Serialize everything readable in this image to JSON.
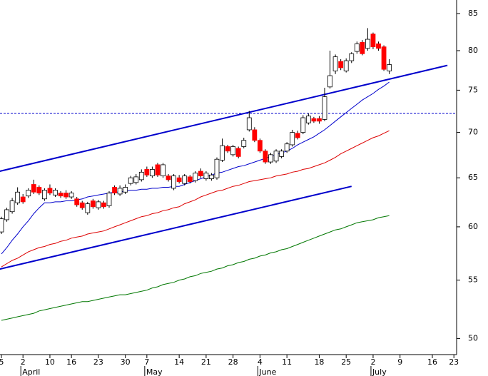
{
  "chart_data": {
    "type": "candlestick",
    "log_scale": true,
    "ylim": [
      48.7,
      86.9
    ],
    "yticks": [
      50,
      55,
      60,
      65,
      70,
      75,
      80,
      85
    ],
    "categories": [
      "5",
      null,
      null,
      null,
      "2",
      null,
      null,
      null,
      null,
      "10",
      null,
      null,
      null,
      "16",
      null,
      null,
      null,
      null,
      "23",
      null,
      null,
      null,
      null,
      "30",
      null,
      null,
      null,
      "7",
      null,
      null,
      null,
      null,
      null,
      "14",
      null,
      null,
      null,
      null,
      "21",
      null,
      null,
      null,
      null,
      "28",
      null,
      null,
      null,
      null,
      "4",
      null,
      null,
      null,
      null,
      "11",
      null,
      null,
      null,
      null,
      null,
      "18",
      null,
      null,
      null,
      null,
      "25",
      null,
      null,
      null,
      null,
      "2",
      null,
      null,
      null,
      null,
      "9",
      null,
      null,
      null,
      null,
      null,
      "16",
      null,
      null,
      null,
      "23"
    ],
    "months": [
      "April",
      "May",
      "June",
      "July"
    ],
    "up_color": "#ffffff",
    "down_color": "#ff0000",
    "ohlc": [
      [
        59.5,
        61.0,
        59.3,
        60.8
      ],
      [
        60.7,
        61.9,
        60.5,
        61.7
      ],
      [
        61.5,
        62.9,
        61.3,
        62.6
      ],
      [
        62.4,
        64.0,
        62.2,
        63.5
      ],
      [
        63.0,
        63.3,
        62.3,
        62.5
      ],
      [
        63.1,
        63.9,
        62.9,
        63.7
      ],
      [
        64.3,
        64.8,
        63.3,
        63.5
      ],
      [
        64.0,
        64.2,
        63.2,
        63.4
      ],
      [
        62.8,
        63.9,
        62.6,
        63.7
      ],
      [
        63.9,
        64.3,
        63.2,
        63.4
      ],
      [
        63.2,
        63.9,
        63.0,
        63.7
      ],
      [
        63.4,
        63.6,
        62.9,
        63.1
      ],
      [
        63.4,
        63.7,
        62.8,
        63.0
      ],
      [
        63.0,
        63.6,
        62.8,
        63.4
      ],
      [
        62.8,
        63.0,
        62.0,
        62.2
      ],
      [
        62.4,
        62.6,
        61.7,
        61.9
      ],
      [
        61.4,
        62.5,
        61.2,
        62.3
      ],
      [
        62.6,
        62.8,
        61.8,
        62.0
      ],
      [
        61.9,
        62.7,
        61.7,
        62.5
      ],
      [
        62.4,
        62.6,
        61.8,
        62.0
      ],
      [
        62.1,
        63.6,
        61.9,
        63.4
      ],
      [
        64.0,
        64.2,
        63.2,
        63.4
      ],
      [
        63.3,
        64.2,
        63.1,
        63.9
      ],
      [
        63.5,
        64.3,
        63.3,
        64.0
      ],
      [
        64.4,
        65.2,
        64.2,
        65.0
      ],
      [
        64.5,
        65.4,
        64.3,
        65.1
      ],
      [
        64.8,
        65.9,
        64.6,
        65.6
      ],
      [
        65.9,
        66.2,
        65.1,
        65.3
      ],
      [
        65.2,
        66.2,
        65.0,
        65.9
      ],
      [
        66.4,
        66.6,
        65.1,
        65.3
      ],
      [
        65.2,
        66.6,
        65.0,
        66.4
      ],
      [
        65.2,
        65.4,
        64.6,
        64.8
      ],
      [
        63.9,
        65.4,
        63.7,
        65.2
      ],
      [
        65.0,
        65.3,
        64.4,
        64.6
      ],
      [
        64.4,
        65.4,
        64.2,
        65.2
      ],
      [
        65.1,
        65.3,
        64.4,
        64.6
      ],
      [
        64.7,
        65.7,
        64.5,
        65.5
      ],
      [
        65.7,
        66.0,
        65.0,
        65.2
      ],
      [
        64.9,
        65.7,
        64.7,
        65.5
      ],
      [
        64.9,
        65.5,
        64.7,
        65.3
      ],
      [
        65.0,
        67.2,
        64.8,
        67.0
      ],
      [
        66.9,
        69.3,
        66.7,
        68.5
      ],
      [
        68.4,
        68.6,
        67.7,
        67.9
      ],
      [
        67.5,
        68.6,
        67.3,
        68.4
      ],
      [
        68.2,
        68.4,
        67.1,
        67.3
      ],
      [
        68.4,
        69.4,
        68.2,
        69.1
      ],
      [
        70.3,
        72.5,
        70.1,
        71.7
      ],
      [
        70.3,
        70.6,
        68.9,
        69.1
      ],
      [
        69.1,
        69.3,
        67.7,
        67.9
      ],
      [
        67.9,
        68.1,
        66.5,
        66.7
      ],
      [
        66.7,
        67.7,
        66.5,
        67.5
      ],
      [
        66.8,
        68.1,
        66.6,
        67.9
      ],
      [
        67.3,
        68.1,
        67.1,
        67.9
      ],
      [
        67.9,
        68.9,
        67.7,
        68.7
      ],
      [
        68.6,
        70.3,
        68.4,
        70.0
      ],
      [
        69.9,
        70.2,
        69.2,
        69.4
      ],
      [
        70.0,
        72.0,
        69.8,
        71.7
      ],
      [
        71.1,
        72.2,
        70.9,
        71.9
      ],
      [
        71.6,
        71.8,
        71.1,
        71.3
      ],
      [
        71.6,
        71.9,
        71.0,
        71.3
      ],
      [
        71.5,
        75.3,
        71.3,
        74.2
      ],
      [
        75.4,
        80.0,
        75.2,
        76.8
      ],
      [
        77.4,
        79.5,
        77.0,
        79.2
      ],
      [
        78.6,
        78.9,
        77.5,
        77.8
      ],
      [
        77.4,
        79.0,
        77.2,
        78.7
      ],
      [
        78.7,
        79.8,
        78.4,
        79.6
      ],
      [
        79.9,
        81.2,
        79.6,
        80.9
      ],
      [
        81.1,
        81.4,
        79.4,
        79.6
      ],
      [
        80.3,
        83.0,
        80.0,
        81.5
      ],
      [
        82.2,
        82.4,
        80.2,
        80.5
      ],
      [
        80.9,
        81.2,
        80.0,
        80.3
      ],
      [
        80.5,
        80.7,
        77.4,
        77.6
      ],
      [
        77.4,
        78.9,
        77.0,
        78.2
      ],
      null,
      null,
      null,
      null,
      null,
      null,
      null,
      null,
      null,
      null,
      null,
      null
    ],
    "series": [
      {
        "color": "#0000cc",
        "values": [
          57.4,
          58.0,
          58.7,
          59.3,
          60.0,
          60.6,
          61.3,
          61.9,
          62.4,
          62.4,
          62.5,
          62.5,
          62.6,
          62.6,
          62.7,
          62.8,
          63.0,
          63.1,
          63.2,
          63.3,
          63.4,
          63.5,
          63.5,
          63.6,
          63.7,
          63.7,
          63.8,
          63.8,
          63.9,
          63.9,
          64.0,
          64.0,
          64.1,
          64.1,
          64.3,
          64.5,
          64.7,
          64.9,
          65.1,
          65.3,
          65.5,
          65.6,
          65.8,
          66.0,
          66.2,
          66.3,
          66.5,
          66.7,
          66.9,
          67.1,
          67.3,
          67.5,
          67.7,
          67.9,
          68.2,
          68.6,
          68.9,
          69.2,
          69.5,
          69.9,
          70.3,
          70.8,
          71.3,
          71.8,
          72.3,
          72.8,
          73.3,
          73.8,
          74.2,
          74.6,
          75.1,
          75.5,
          76.0,
          null,
          null,
          null,
          null,
          null,
          null,
          null,
          null,
          null,
          null,
          null,
          null
        ]
      },
      {
        "color": "#dd0000",
        "values": [
          56.2,
          56.5,
          56.8,
          57.0,
          57.3,
          57.6,
          57.8,
          58.0,
          58.1,
          58.3,
          58.4,
          58.6,
          58.7,
          58.9,
          59.0,
          59.1,
          59.3,
          59.4,
          59.5,
          59.6,
          59.8,
          60.0,
          60.2,
          60.4,
          60.6,
          60.8,
          61.0,
          61.1,
          61.3,
          61.4,
          61.6,
          61.7,
          61.9,
          62.0,
          62.3,
          62.5,
          62.7,
          63.0,
          63.2,
          63.4,
          63.6,
          63.7,
          63.9,
          64.1,
          64.2,
          64.4,
          64.6,
          64.7,
          64.8,
          64.9,
          65.0,
          65.2,
          65.3,
          65.4,
          65.6,
          65.7,
          65.9,
          66.0,
          66.2,
          66.4,
          66.6,
          66.9,
          67.2,
          67.6,
          67.9,
          68.2,
          68.5,
          68.8,
          69.1,
          69.4,
          69.6,
          69.9,
          70.2,
          null,
          null,
          null,
          null,
          null,
          null,
          null,
          null,
          null,
          null,
          null,
          null
        ]
      },
      {
        "color": "#007700",
        "values": [
          51.5,
          51.6,
          51.7,
          51.8,
          51.9,
          52.0,
          52.1,
          52.3,
          52.4,
          52.5,
          52.6,
          52.7,
          52.8,
          52.9,
          53.0,
          53.1,
          53.1,
          53.2,
          53.3,
          53.4,
          53.5,
          53.6,
          53.7,
          53.7,
          53.8,
          53.9,
          54.0,
          54.1,
          54.3,
          54.4,
          54.6,
          54.7,
          54.8,
          55.0,
          55.1,
          55.3,
          55.4,
          55.6,
          55.7,
          55.8,
          56.0,
          56.1,
          56.3,
          56.4,
          56.6,
          56.7,
          56.9,
          57.0,
          57.2,
          57.3,
          57.5,
          57.6,
          57.8,
          57.9,
          58.1,
          58.3,
          58.5,
          58.7,
          58.9,
          59.1,
          59.3,
          59.5,
          59.7,
          59.8,
          60.0,
          60.2,
          60.4,
          60.5,
          60.6,
          60.7,
          60.9,
          61.0,
          61.1,
          null,
          null,
          null,
          null,
          null,
          null,
          null,
          null,
          null,
          null,
          null,
          null
        ]
      }
    ],
    "trend_lines": [
      {
        "color": "#0000cc",
        "x": [
          -0.3,
          82.8
        ],
        "y": [
          65.7,
          78.1
        ]
      },
      {
        "color": "#0000cc",
        "x": [
          -0.3,
          65
        ],
        "y": [
          56.0,
          64.1
        ]
      }
    ],
    "reference_line": {
      "color": "#0000cc",
      "value": 72.2
    }
  }
}
